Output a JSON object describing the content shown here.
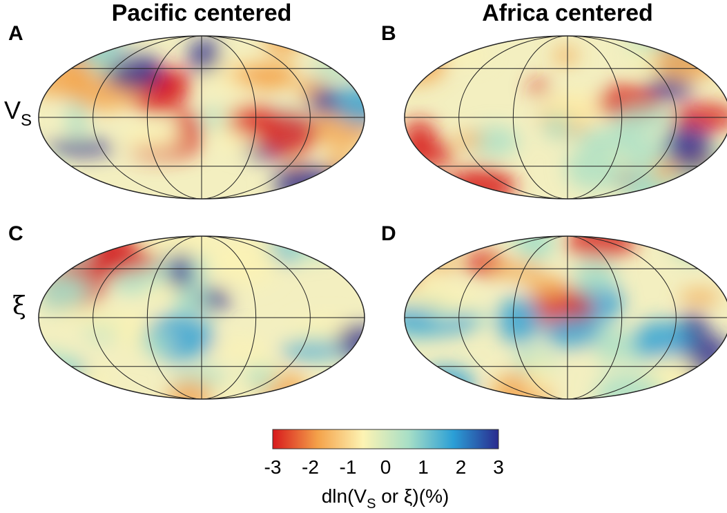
{
  "columns": [
    "Pacific centered",
    "Africa centered"
  ],
  "panels": [
    "A",
    "B",
    "C",
    "D"
  ],
  "rows": [
    {
      "main": "V",
      "sub": "S"
    },
    {
      "main": "ξ"
    }
  ],
  "colorbar": {
    "range": [
      -3,
      3
    ],
    "ticks": [
      -3,
      -2,
      -1,
      0,
      1,
      2,
      3
    ],
    "colors": [
      "#d7191c",
      "#f4a24a",
      "#fdf3b3",
      "#a8dfc6",
      "#2b9fd6",
      "#2a2a8e"
    ],
    "label_parts": [
      "dln(V",
      "S",
      " or ξ)(%)"
    ]
  }
}
